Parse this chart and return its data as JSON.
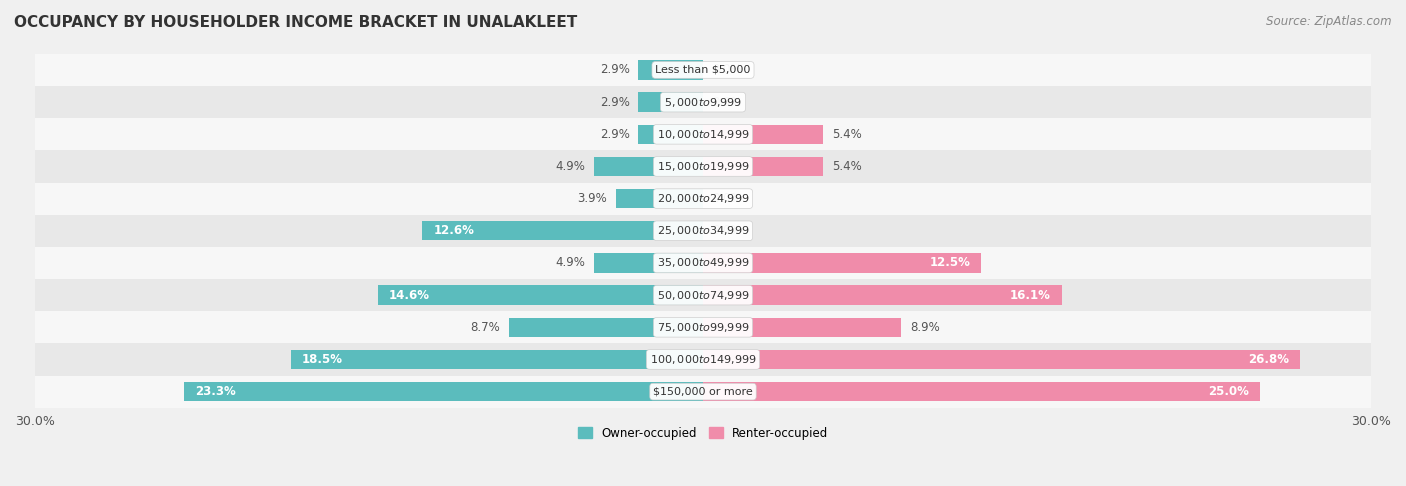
{
  "title": "OCCUPANCY BY HOUSEHOLDER INCOME BRACKET IN UNALAKLEET",
  "source": "Source: ZipAtlas.com",
  "categories": [
    "Less than $5,000",
    "$5,000 to $9,999",
    "$10,000 to $14,999",
    "$15,000 to $19,999",
    "$20,000 to $24,999",
    "$25,000 to $34,999",
    "$35,000 to $49,999",
    "$50,000 to $74,999",
    "$75,000 to $99,999",
    "$100,000 to $149,999",
    "$150,000 or more"
  ],
  "owner_values": [
    2.9,
    2.9,
    2.9,
    4.9,
    3.9,
    12.6,
    4.9,
    14.6,
    8.7,
    18.5,
    23.3
  ],
  "renter_values": [
    0.0,
    0.0,
    5.4,
    5.4,
    0.0,
    0.0,
    12.5,
    16.1,
    8.9,
    26.8,
    25.0
  ],
  "owner_color": "#5bbcbd",
  "renter_color": "#f08caa",
  "owner_label": "Owner-occupied",
  "renter_label": "Renter-occupied",
  "xlim": 30.0,
  "background_color": "#f0f0f0",
  "row_color_light": "#f7f7f7",
  "row_color_dark": "#e8e8e8",
  "title_fontsize": 11,
  "label_fontsize": 8.5,
  "tick_fontsize": 9,
  "source_fontsize": 8.5,
  "value_fontsize": 8.5,
  "cat_fontsize": 8
}
